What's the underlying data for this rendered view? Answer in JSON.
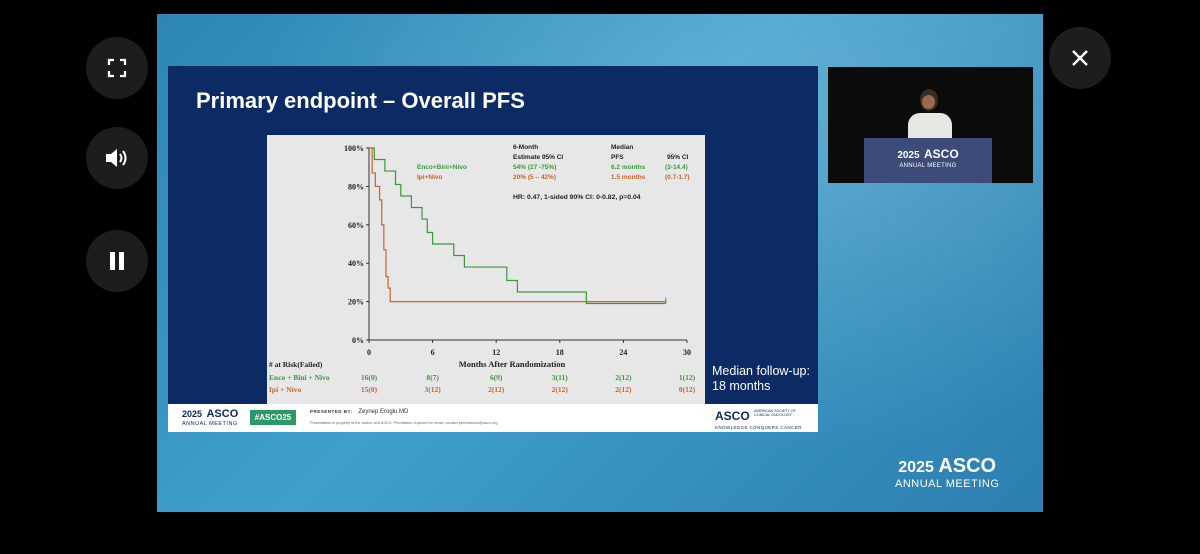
{
  "slide": {
    "title": "Primary endpoint – Overall PFS",
    "followup_line1": "Median follow-up:",
    "followup_line2": "18 months"
  },
  "chart_data": {
    "type": "line",
    "title": "",
    "xlabel": "Months After Randomization",
    "ylabel": "",
    "xlim": [
      0,
      30
    ],
    "ylim": [
      0,
      100
    ],
    "x_ticks": [
      "0",
      "6",
      "12",
      "18",
      "24",
      "30"
    ],
    "y_ticks": [
      "0%",
      "20%",
      "40%",
      "60%",
      "80%",
      "100%"
    ],
    "series": [
      {
        "name": "Enco+Bini+Nivo",
        "color": "#3a9a3a",
        "steps": [
          [
            0,
            100
          ],
          [
            0.5,
            94
          ],
          [
            1,
            94
          ],
          [
            1.5,
            88
          ],
          [
            2.5,
            81
          ],
          [
            3,
            75
          ],
          [
            4,
            69
          ],
          [
            5,
            63
          ],
          [
            5.5,
            56
          ],
          [
            6,
            50
          ],
          [
            8,
            44
          ],
          [
            9,
            38
          ],
          [
            13,
            31
          ],
          [
            14,
            25
          ],
          [
            20,
            25
          ],
          [
            20.5,
            19
          ],
          [
            28,
            19
          ]
        ],
        "six_month_estimate": "54% (27 -75%)",
        "median_pfs": "6.2 months",
        "median_ci": "(3-14.4)"
      },
      {
        "name": "Ipi+Nivo",
        "color": "#c8652a",
        "steps": [
          [
            0,
            100
          ],
          [
            0.3,
            87
          ],
          [
            0.6,
            80
          ],
          [
            1,
            73
          ],
          [
            1.2,
            60
          ],
          [
            1.4,
            47
          ],
          [
            1.6,
            33
          ],
          [
            1.8,
            27
          ],
          [
            2,
            20
          ],
          [
            28,
            20
          ]
        ],
        "six_month_estimate": "20% (5 – 42%)",
        "median_pfs": "1.5 months",
        "median_ci": "(0.7-1.7)"
      }
    ],
    "legend_header": {
      "col1a": "6-Month",
      "col1b": "Estimate 95% CI",
      "col2a": "Median",
      "col2b": "PFS",
      "col3": "95% CI"
    },
    "hr_text": "HR: 0.47, 1-sided 90% CI: 0-0.82, p=0.04",
    "risk_table": {
      "header": "# at Risk(Failed)",
      "rows": [
        {
          "label": "Enco + Bini + Nivo",
          "color": "#3a9a3a",
          "values": [
            "16(0)",
            "8(7)",
            "6(9)",
            "3(11)",
            "2(12)",
            "1(12)"
          ]
        },
        {
          "label": "Ipi + Nivo",
          "color": "#c8652a",
          "values": [
            "15(0)",
            "3(12)",
            "2(12)",
            "2(12)",
            "2(12)",
            "0(12)"
          ]
        }
      ]
    }
  },
  "footer": {
    "asco_year": "2025",
    "asco_word": "ASCO",
    "meeting": "ANNUAL MEETING",
    "hashtag": "#ASCO25",
    "presented_by_label": "PRESENTED BY:",
    "presenter": "Zeynep Eroglu MD",
    "disclaimer": "Presentation is property of the author and ASCO. Permission required for reuse; contact permissions@asco.org",
    "org_logo": "ASCO",
    "org_name_line1": "AMERICAN SOCIETY OF",
    "org_name_line2": "CLINICAL ONCOLOGY",
    "tagline": "KNOWLEDGE CONQUERS CANCER"
  },
  "camera": {
    "podium_year": "2025",
    "podium_word": "ASCO",
    "podium_meeting": "ANNUAL MEETING"
  },
  "brand": {
    "year": "2025",
    "word": "ASCO",
    "meeting": "ANNUAL MEETING"
  },
  "controls": {
    "fullscreen_icon": "fullscreen-icon",
    "volume_icon": "volume-icon",
    "pause_icon": "pause-icon",
    "close_icon": "close-icon"
  }
}
